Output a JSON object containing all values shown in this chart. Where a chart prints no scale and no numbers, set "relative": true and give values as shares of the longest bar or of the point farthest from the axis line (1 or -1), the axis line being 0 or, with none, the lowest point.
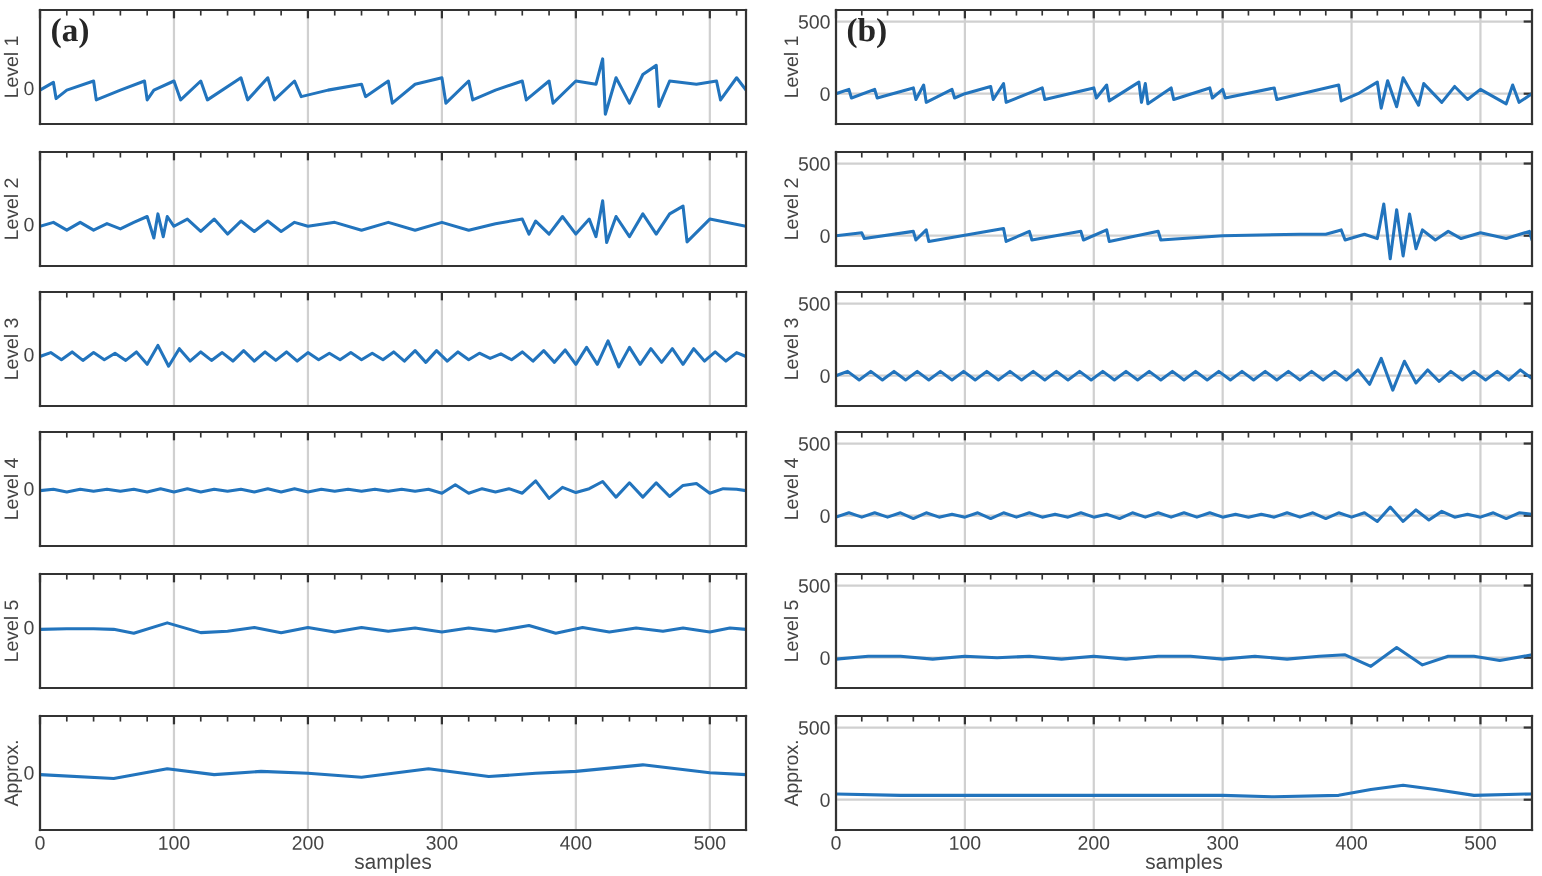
{
  "chart_data": [
    {
      "type": "line",
      "relative": true,
      "ylabel": "Level 1",
      "annotations": [
        "(a)",
        "0"
      ],
      "color": "#2274bd",
      "grid": "x",
      "tick_labels": false,
      "xlim": [
        0,
        527
      ],
      "xticks": [
        0,
        100,
        200,
        300,
        400,
        500
      ],
      "x": [
        0,
        10,
        12,
        20,
        40,
        42,
        60,
        78,
        80,
        85,
        100,
        105,
        120,
        125,
        150,
        155,
        170,
        175,
        190,
        195,
        215,
        240,
        243,
        260,
        263,
        280,
        300,
        303,
        320,
        323,
        340,
        360,
        363,
        380,
        383,
        400,
        415,
        420,
        422,
        430,
        440,
        450,
        460,
        462,
        470,
        490,
        505,
        508,
        520,
        527
      ],
      "values": [
        0.52,
        0.64,
        0.39,
        0.52,
        0.66,
        0.37,
        0.52,
        0.66,
        0.37,
        0.52,
        0.66,
        0.37,
        0.66,
        0.37,
        0.71,
        0.37,
        0.71,
        0.37,
        0.66,
        0.42,
        0.52,
        0.61,
        0.42,
        0.66,
        0.32,
        0.61,
        0.71,
        0.32,
        0.66,
        0.37,
        0.52,
        0.66,
        0.37,
        0.66,
        0.32,
        0.66,
        0.61,
        1,
        0.15,
        0.71,
        0.32,
        0.76,
        0.9,
        0.27,
        0.66,
        0.61,
        0.66,
        0.37,
        0.71,
        0.52
      ]
    },
    {
      "type": "line",
      "relative": true,
      "ylabel": "Level 2",
      "annotations": [
        "0"
      ],
      "color": "#2274bd",
      "grid": "x",
      "tick_labels": false,
      "xlim": [
        0,
        527
      ],
      "xticks": [
        0,
        100,
        200,
        300,
        400,
        500
      ],
      "x": [
        0,
        10,
        20,
        30,
        40,
        50,
        60,
        70,
        80,
        85,
        88,
        92,
        95,
        100,
        110,
        120,
        130,
        140,
        150,
        160,
        170,
        180,
        190,
        200,
        220,
        240,
        260,
        280,
        300,
        320,
        340,
        360,
        365,
        370,
        380,
        390,
        400,
        410,
        415,
        420,
        423,
        430,
        440,
        450,
        460,
        470,
        480,
        483,
        500,
        527
      ],
      "values": [
        0.61,
        0.67,
        0.55,
        0.67,
        0.55,
        0.65,
        0.57,
        0.67,
        0.76,
        0.43,
        0.8,
        0.45,
        0.76,
        0.61,
        0.72,
        0.53,
        0.72,
        0.49,
        0.69,
        0.53,
        0.69,
        0.53,
        0.67,
        0.61,
        0.67,
        0.55,
        0.67,
        0.55,
        0.67,
        0.55,
        0.65,
        0.72,
        0.49,
        0.69,
        0.49,
        0.76,
        0.49,
        0.72,
        0.45,
        1,
        0.36,
        0.76,
        0.45,
        0.8,
        0.49,
        0.8,
        0.92,
        0.37,
        0.72,
        0.61
      ]
    },
    {
      "type": "line",
      "relative": true,
      "ylabel": "Level 3",
      "annotations": [
        "0"
      ],
      "color": "#2274bd",
      "grid": "x",
      "tick_labels": false,
      "xlim": [
        0,
        527
      ],
      "xticks": [
        0,
        100,
        200,
        300,
        400,
        500
      ],
      "x": [
        0,
        8,
        16,
        24,
        32,
        40,
        48,
        56,
        64,
        72,
        80,
        88,
        96,
        104,
        112,
        120,
        128,
        136,
        144,
        152,
        160,
        168,
        176,
        184,
        192,
        200,
        208,
        216,
        224,
        232,
        240,
        248,
        256,
        264,
        272,
        280,
        288,
        296,
        304,
        312,
        320,
        328,
        336,
        344,
        352,
        360,
        368,
        376,
        384,
        392,
        400,
        408,
        416,
        424,
        432,
        440,
        448,
        456,
        464,
        472,
        480,
        488,
        496,
        504,
        512,
        520,
        527
      ],
      "values": [
        0.76,
        0.82,
        0.71,
        0.83,
        0.7,
        0.82,
        0.71,
        0.81,
        0.7,
        0.83,
        0.64,
        0.93,
        0.61,
        0.88,
        0.69,
        0.83,
        0.7,
        0.82,
        0.69,
        0.85,
        0.69,
        0.83,
        0.7,
        0.83,
        0.69,
        0.82,
        0.71,
        0.81,
        0.71,
        0.82,
        0.71,
        0.81,
        0.71,
        0.83,
        0.69,
        0.85,
        0.67,
        0.85,
        0.69,
        0.83,
        0.71,
        0.81,
        0.73,
        0.8,
        0.71,
        0.83,
        0.69,
        0.85,
        0.67,
        0.86,
        0.64,
        0.9,
        0.64,
        1,
        0.6,
        0.9,
        0.64,
        0.88,
        0.67,
        0.88,
        0.64,
        0.88,
        0.69,
        0.83,
        0.69,
        0.82,
        0.76
      ]
    },
    {
      "type": "line",
      "relative": true,
      "ylabel": "Level 4",
      "annotations": [
        "0"
      ],
      "color": "#2274bd",
      "grid": "x",
      "tick_labels": false,
      "xlim": [
        0,
        527
      ],
      "xticks": [
        0,
        100,
        200,
        300,
        400,
        500
      ],
      "x": [
        0,
        10,
        20,
        30,
        40,
        50,
        60,
        70,
        80,
        90,
        100,
        110,
        120,
        130,
        140,
        150,
        160,
        170,
        180,
        190,
        200,
        210,
        220,
        230,
        240,
        250,
        260,
        270,
        280,
        290,
        300,
        310,
        320,
        330,
        340,
        350,
        360,
        370,
        380,
        390,
        400,
        410,
        420,
        430,
        440,
        450,
        460,
        470,
        480,
        490,
        500,
        510,
        520,
        527
      ],
      "values": [
        0.85,
        0.87,
        0.83,
        0.87,
        0.84,
        0.87,
        0.84,
        0.87,
        0.83,
        0.88,
        0.83,
        0.88,
        0.83,
        0.87,
        0.84,
        0.87,
        0.83,
        0.88,
        0.83,
        0.88,
        0.83,
        0.87,
        0.84,
        0.87,
        0.84,
        0.87,
        0.84,
        0.87,
        0.84,
        0.87,
        0.81,
        0.94,
        0.81,
        0.88,
        0.83,
        0.88,
        0.81,
        1,
        0.73,
        0.9,
        0.82,
        0.88,
        0.99,
        0.75,
        0.97,
        0.75,
        0.97,
        0.76,
        0.93,
        0.96,
        0.81,
        0.88,
        0.87,
        0.85
      ]
    },
    {
      "type": "line",
      "relative": true,
      "ylabel": "Level 5",
      "annotations": [
        "0"
      ],
      "color": "#2274bd",
      "grid": "x",
      "tick_labels": false,
      "xlim": [
        0,
        527
      ],
      "xticks": [
        0,
        100,
        200,
        300,
        400,
        500
      ],
      "x": [
        0,
        20,
        40,
        55,
        70,
        95,
        120,
        140,
        160,
        180,
        200,
        220,
        240,
        260,
        280,
        300,
        320,
        340,
        365,
        385,
        405,
        425,
        445,
        465,
        480,
        500,
        515,
        527
      ],
      "values": [
        0.9,
        0.91,
        0.91,
        0.9,
        0.84,
        1,
        0.85,
        0.87,
        0.93,
        0.85,
        0.93,
        0.86,
        0.93,
        0.87,
        0.92,
        0.86,
        0.92,
        0.87,
        0.96,
        0.84,
        0.93,
        0.86,
        0.92,
        0.87,
        0.92,
        0.86,
        0.92,
        0.9
      ]
    },
    {
      "type": "line",
      "relative": true,
      "ylabel": "Approx.",
      "xlabel": "samples",
      "annotations": [
        "0"
      ],
      "color": "#2274bd",
      "grid": "x",
      "tick_labels": "x",
      "xlim": [
        0,
        527
      ],
      "xticks": [
        0,
        100,
        200,
        300,
        400,
        500
      ],
      "x": [
        0,
        55,
        95,
        130,
        165,
        200,
        240,
        290,
        335,
        370,
        400,
        450,
        500,
        527
      ],
      "values": [
        0.85,
        0.79,
        0.94,
        0.85,
        0.9,
        0.87,
        0.81,
        0.94,
        0.82,
        0.87,
        0.9,
        1,
        0.88,
        0.85
      ]
    },
    {
      "type": "line",
      "ylabel": "Level 1",
      "annotations": [
        "(b)"
      ],
      "color": "#2274bd",
      "grid": true,
      "tick_labels": "y",
      "xlim": [
        0,
        540
      ],
      "xticks": [
        0,
        100,
        200,
        300,
        400,
        500
      ],
      "ylim": [
        -210,
        580
      ],
      "yticks": [
        0,
        500
      ],
      "x": [
        0,
        10,
        12,
        30,
        32,
        60,
        62,
        68,
        70,
        90,
        92,
        100,
        120,
        122,
        130,
        132,
        160,
        162,
        200,
        202,
        210,
        212,
        235,
        237,
        240,
        242,
        260,
        262,
        290,
        292,
        300,
        302,
        340,
        342,
        390,
        392,
        405,
        420,
        423,
        428,
        435,
        440,
        452,
        456,
        470,
        480,
        490,
        500,
        520,
        525,
        530,
        540
      ],
      "values": [
        0,
        30,
        -30,
        30,
        -30,
        40,
        -40,
        60,
        -60,
        30,
        -30,
        0,
        50,
        -40,
        70,
        -60,
        40,
        -40,
        40,
        -30,
        60,
        -50,
        80,
        -60,
        70,
        -70,
        40,
        -40,
        40,
        -30,
        30,
        -30,
        40,
        -40,
        60,
        -50,
        0,
        80,
        -100,
        90,
        -90,
        110,
        -80,
        70,
        -60,
        50,
        -40,
        30,
        -70,
        60,
        -60,
        0
      ]
    },
    {
      "type": "line",
      "ylabel": "Level 2",
      "color": "#2274bd",
      "grid": true,
      "tick_labels": "y",
      "xlim": [
        0,
        540
      ],
      "xticks": [
        0,
        100,
        200,
        300,
        400,
        500
      ],
      "ylim": [
        -210,
        580
      ],
      "yticks": [
        0,
        500
      ],
      "x": [
        0,
        20,
        22,
        60,
        62,
        70,
        72,
        130,
        132,
        150,
        152,
        190,
        192,
        210,
        212,
        250,
        252,
        300,
        360,
        380,
        392,
        395,
        410,
        420,
        425,
        430,
        435,
        440,
        445,
        450,
        455,
        465,
        475,
        485,
        500,
        520,
        538,
        540
      ],
      "values": [
        0,
        20,
        -20,
        30,
        -30,
        40,
        -40,
        50,
        -40,
        30,
        -30,
        30,
        -30,
        40,
        -40,
        30,
        -30,
        0,
        10,
        10,
        40,
        -30,
        10,
        -20,
        220,
        -160,
        180,
        -140,
        150,
        -90,
        40,
        -30,
        30,
        -20,
        20,
        -20,
        30,
        -30
      ]
    },
    {
      "type": "line",
      "ylabel": "Level 3",
      "color": "#2274bd",
      "grid": true,
      "tick_labels": "y",
      "xlim": [
        0,
        540
      ],
      "xticks": [
        0,
        100,
        200,
        300,
        400,
        500
      ],
      "ylim": [
        -210,
        580
      ],
      "yticks": [
        0,
        500
      ],
      "x": [
        0,
        9,
        18,
        27,
        36,
        45,
        54,
        63,
        72,
        81,
        90,
        99,
        108,
        117,
        126,
        135,
        144,
        153,
        162,
        171,
        180,
        189,
        198,
        207,
        216,
        225,
        234,
        243,
        252,
        261,
        270,
        279,
        288,
        297,
        306,
        315,
        324,
        333,
        342,
        351,
        360,
        369,
        378,
        387,
        396,
        405,
        414,
        423,
        432,
        441,
        450,
        459,
        468,
        477,
        486,
        495,
        504,
        513,
        522,
        531,
        540
      ],
      "values": [
        0,
        30,
        -30,
        30,
        -30,
        30,
        -30,
        30,
        -30,
        30,
        -30,
        30,
        -30,
        30,
        -30,
        30,
        -30,
        30,
        -30,
        30,
        -30,
        30,
        -30,
        30,
        -30,
        30,
        -30,
        30,
        -30,
        30,
        -30,
        30,
        -30,
        30,
        -30,
        30,
        -30,
        30,
        -30,
        30,
        -30,
        30,
        -30,
        30,
        -30,
        40,
        -60,
        120,
        -100,
        100,
        -50,
        40,
        -40,
        30,
        -30,
        30,
        -30,
        30,
        -30,
        40,
        -20
      ]
    },
    {
      "type": "line",
      "ylabel": "Level 4",
      "color": "#2274bd",
      "grid": true,
      "tick_labels": "y",
      "xlim": [
        0,
        540
      ],
      "xticks": [
        0,
        100,
        200,
        300,
        400,
        500
      ],
      "ylim": [
        -210,
        580
      ],
      "yticks": [
        0,
        500
      ],
      "x": [
        0,
        10,
        20,
        30,
        40,
        50,
        60,
        70,
        80,
        90,
        100,
        110,
        120,
        130,
        140,
        150,
        160,
        170,
        180,
        190,
        200,
        210,
        220,
        230,
        240,
        250,
        260,
        270,
        280,
        290,
        300,
        310,
        320,
        330,
        340,
        350,
        360,
        370,
        380,
        390,
        400,
        410,
        420,
        430,
        440,
        450,
        460,
        470,
        480,
        490,
        500,
        510,
        520,
        530,
        540
      ],
      "values": [
        -10,
        20,
        -10,
        20,
        -10,
        20,
        -20,
        20,
        -10,
        10,
        -10,
        20,
        -20,
        20,
        -10,
        20,
        -10,
        10,
        -10,
        20,
        -10,
        10,
        -20,
        20,
        -10,
        20,
        -10,
        20,
        -10,
        20,
        -10,
        10,
        -10,
        10,
        -10,
        20,
        -10,
        20,
        -20,
        20,
        -10,
        20,
        -40,
        60,
        -40,
        40,
        -30,
        30,
        -10,
        10,
        -10,
        20,
        -20,
        20,
        10
      ]
    },
    {
      "type": "line",
      "ylabel": "Level 5",
      "color": "#2274bd",
      "grid": true,
      "tick_labels": "y",
      "xlim": [
        0,
        540
      ],
      "xticks": [
        0,
        100,
        200,
        300,
        400,
        500
      ],
      "ylim": [
        -210,
        580
      ],
      "yticks": [
        0,
        500
      ],
      "x": [
        0,
        25,
        50,
        75,
        100,
        125,
        150,
        175,
        200,
        225,
        250,
        275,
        300,
        325,
        350,
        375,
        395,
        415,
        435,
        455,
        475,
        495,
        515,
        540
      ],
      "values": [
        -10,
        10,
        10,
        -10,
        10,
        0,
        10,
        -10,
        10,
        -10,
        10,
        10,
        -10,
        10,
        -10,
        10,
        20,
        -60,
        70,
        -50,
        10,
        10,
        -20,
        20
      ]
    },
    {
      "type": "line",
      "ylabel": "Approx.",
      "xlabel": "samples",
      "color": "#2274bd",
      "grid": true,
      "xlim": [
        0,
        540
      ],
      "xticks": [
        0,
        100,
        200,
        300,
        400,
        500
      ],
      "ylim": [
        -210,
        580
      ],
      "yticks": [
        0,
        500
      ],
      "x": [
        0,
        50,
        100,
        150,
        200,
        250,
        300,
        340,
        390,
        415,
        440,
        465,
        495,
        540
      ],
      "values": [
        40,
        30,
        30,
        30,
        30,
        30,
        30,
        20,
        30,
        70,
        100,
        70,
        30,
        40
      ]
    }
  ]
}
